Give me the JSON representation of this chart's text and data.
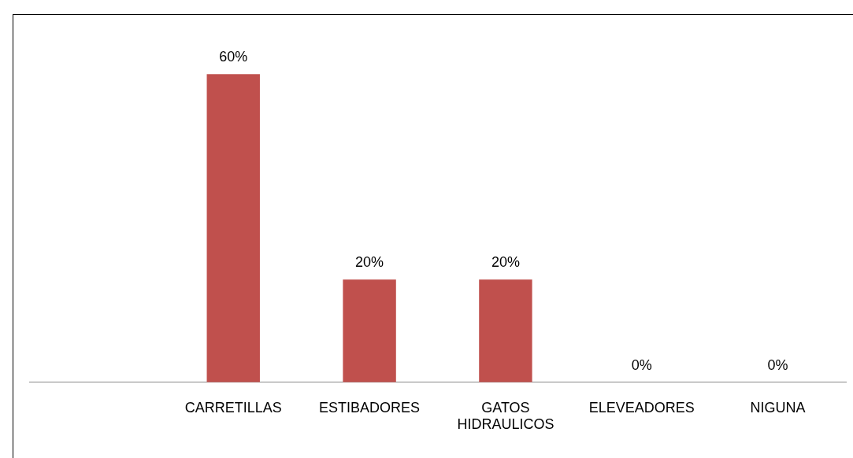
{
  "chart_data": {
    "type": "bar",
    "categories": [
      null,
      "CARRETILLAS",
      "ESTIBADORES",
      "GATOS HIDRAULICOS",
      "ELEVEADORES",
      "NIGUNA"
    ],
    "values": [
      null,
      60,
      20,
      20,
      0,
      0
    ],
    "value_labels": [
      null,
      "60%",
      "20%",
      "20%",
      "0%",
      "0%"
    ],
    "color": "#c0504d",
    "legend": false
  }
}
